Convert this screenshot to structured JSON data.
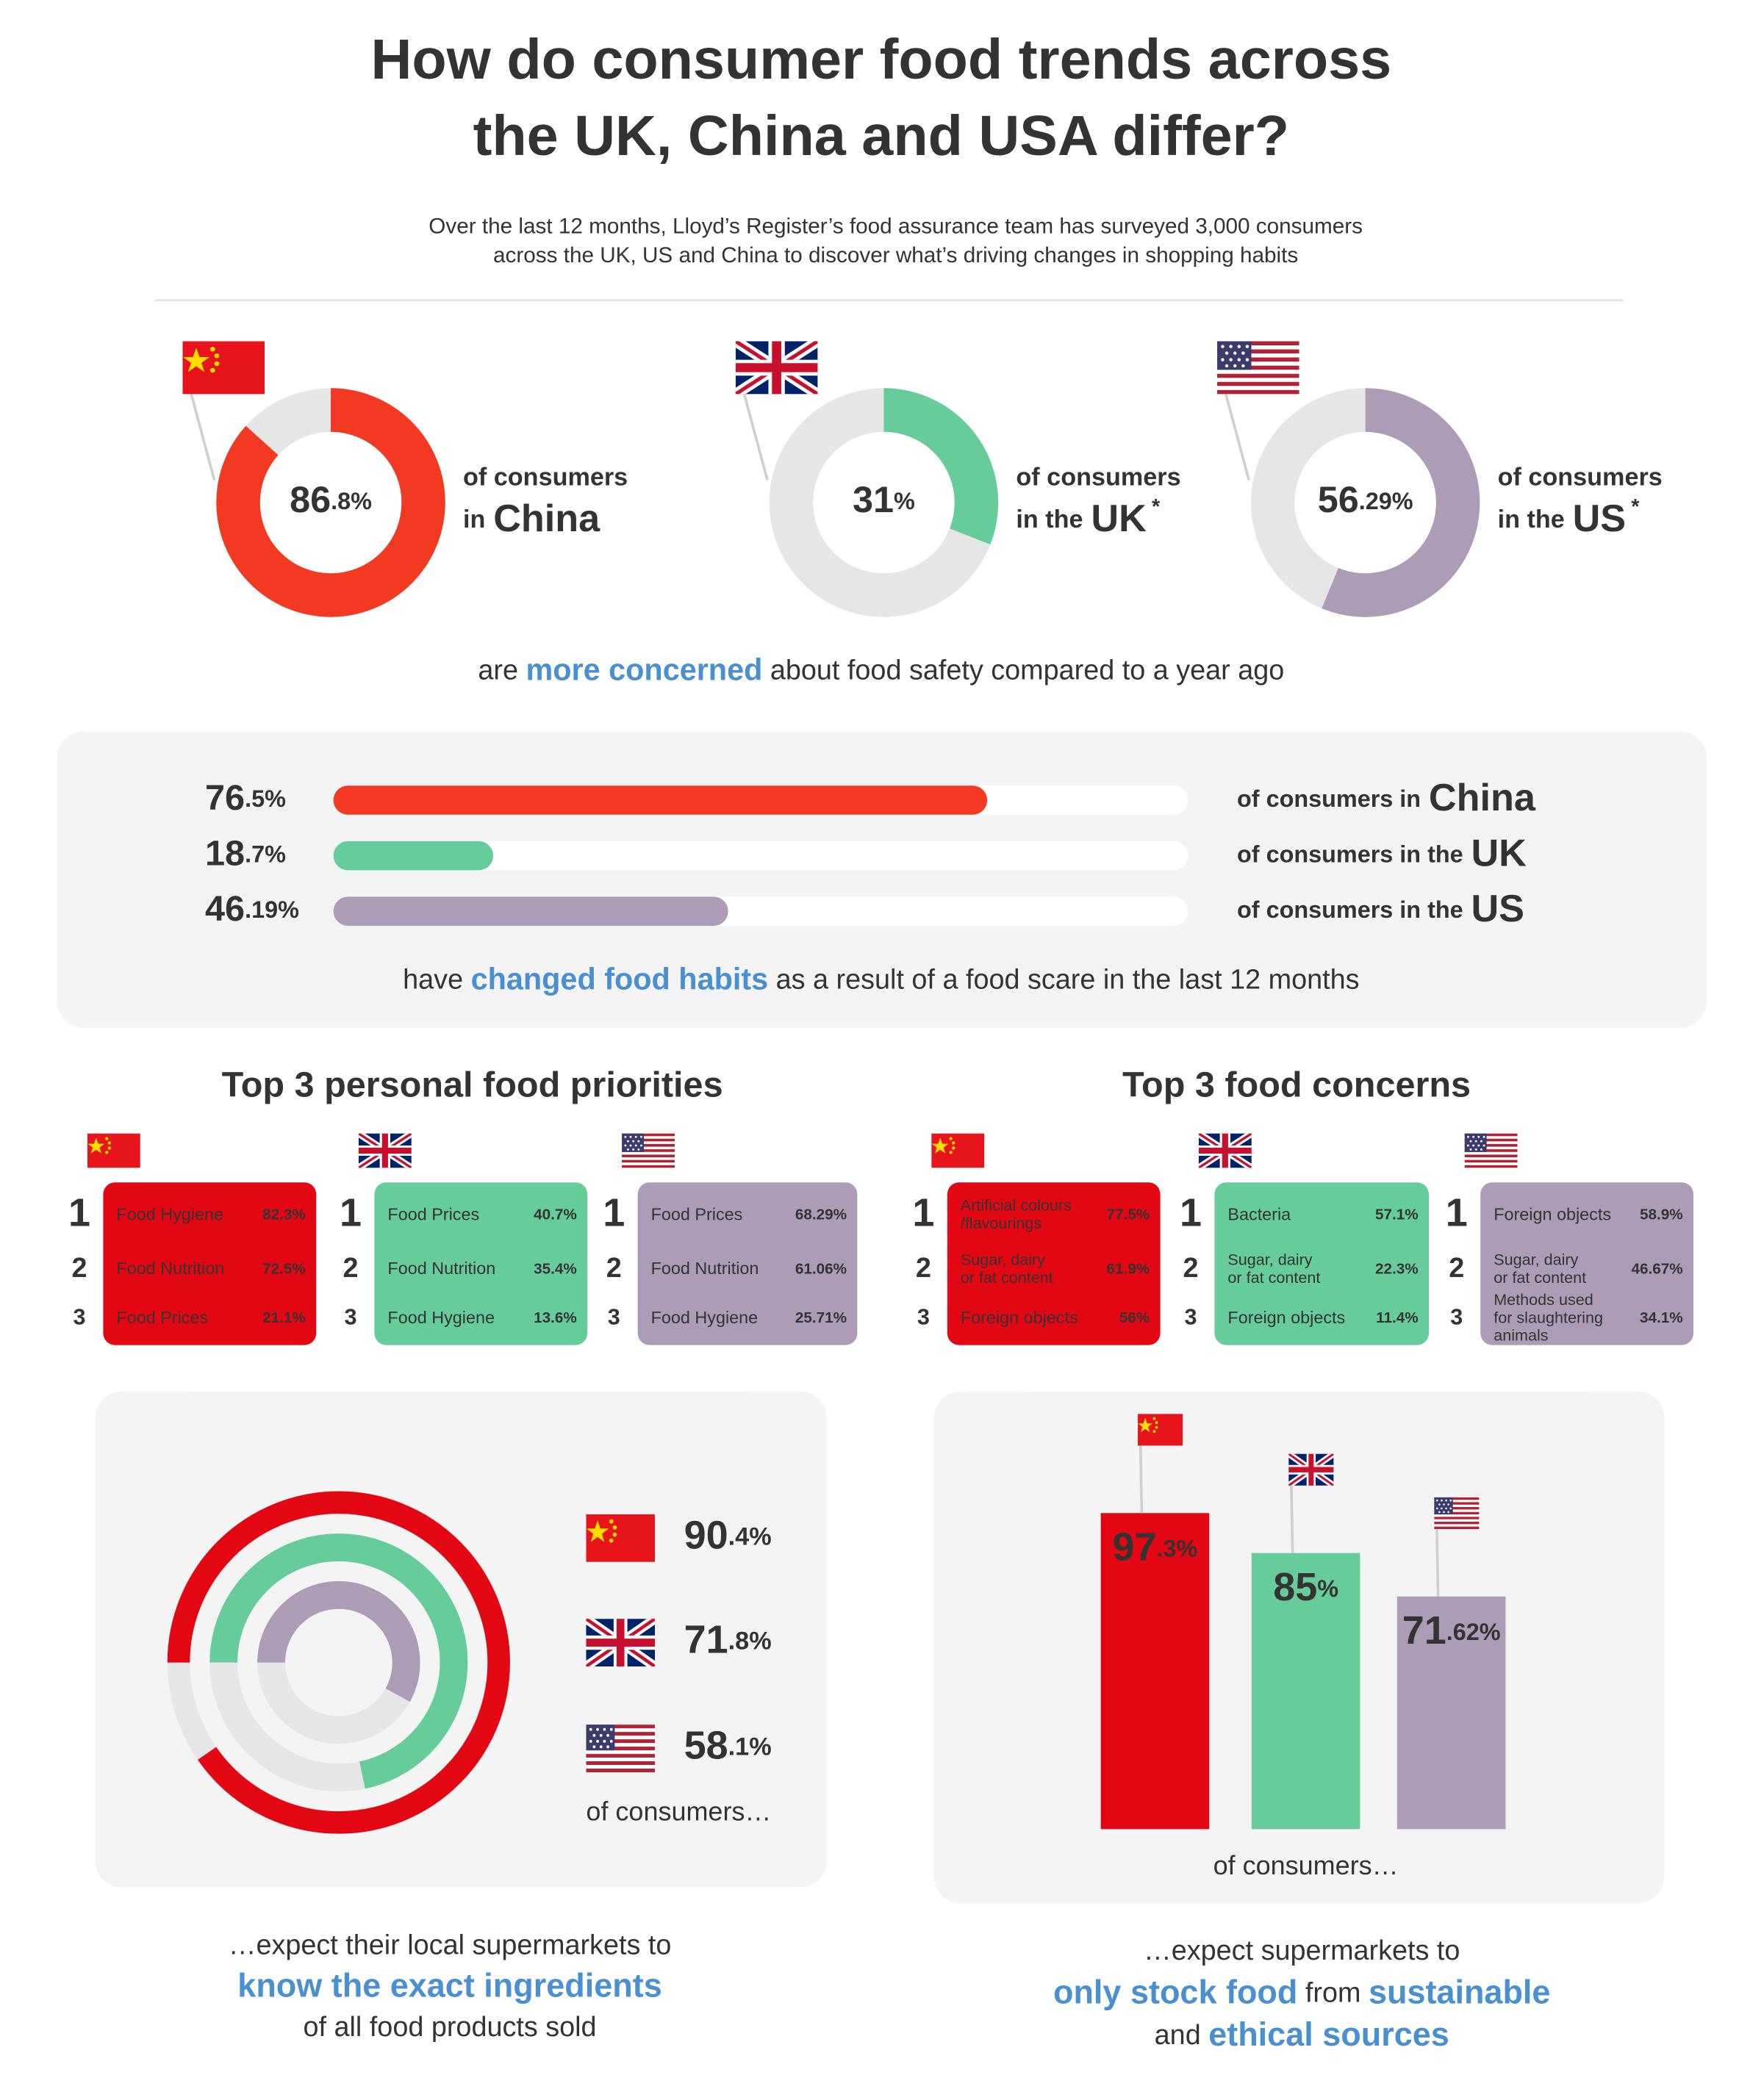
{
  "header": {
    "title_lines": [
      "How do consumer food trends across",
      "the UK, China and USA differ?"
    ],
    "subtitle_lines": [
      "Over the last 12 months, Lloyd’s Register’s food assurance team has surveyed 3,000 consumers",
      "across the UK, US and China to discover what’s driving changes in shopping habits"
    ]
  },
  "chart_data": [
    {
      "type": "donut",
      "track_color": "#e6e6e6",
      "series": [
        {
          "name": "China",
          "flag": "china",
          "color": "#f23a22",
          "value": 86.8,
          "value_label": "86.8%",
          "caption": [
            "of consumers",
            "in"
          ]
        },
        {
          "name": "UK",
          "flag": "uk",
          "color": "#66cc99",
          "value": 31,
          "value_label": "31%",
          "caption": [
            "of consumers",
            "in the"
          ],
          "note": "*"
        },
        {
          "name": "US",
          "flag": "us",
          "color": "#ad9cb5",
          "value": 56.29,
          "value_label": "56.29%",
          "caption": [
            "of consumers",
            "in the"
          ],
          "note": "*"
        }
      ],
      "caption": [
        [
          {
            "text": "are "
          },
          {
            "text": "more concerned",
            "bold": true
          },
          {
            "text": " about food safety compared to a year ago"
          }
        ]
      ]
    },
    {
      "type": "progress",
      "track_color": "#ffffff",
      "xlim": [
        0,
        100
      ],
      "series": [
        {
          "name": "China",
          "color": "#f23a22",
          "value": 76.5,
          "value_label": "76.5%",
          "caption": "of consumers in"
        },
        {
          "name": "UK",
          "color": "#66cc99",
          "value": 18.7,
          "value_label": "18.7%",
          "caption": "of consumers in the"
        },
        {
          "name": "US",
          "color": "#ad9cb5",
          "value": 46.19,
          "value_label": "46.19%",
          "caption": "of consumers in the"
        }
      ],
      "caption": [
        [
          {
            "text": "have "
          },
          {
            "text": "changed food habits",
            "bold": true
          },
          {
            "text": " as a result of a food scare in the last 12 months"
          }
        ]
      ]
    },
    {
      "type": "rings",
      "track_color": "#e6e6e6",
      "series": [
        {
          "flag": "china",
          "color": "#e30613",
          "value": 90.4,
          "value_label": "90.4%"
        },
        {
          "flag": "uk",
          "color": "#66cc99",
          "value": 71.8,
          "value_label": "71.8%"
        },
        {
          "flag": "us",
          "color": "#ad9cb5",
          "value": 58.1,
          "value_label": "58.1%"
        }
      ],
      "footer": "of consumers…",
      "caption": [
        [
          {
            "text": "…expect their local supermarkets to"
          }
        ],
        [
          {
            "text": "know the exact ingredients",
            "bold": true
          }
        ],
        [
          {
            "text": "of all food products sold"
          }
        ]
      ]
    },
    {
      "type": "bar",
      "ylim": [
        0,
        100
      ],
      "series": [
        {
          "flag": "china",
          "color": "#e30613",
          "value": 97.3,
          "value_label": "97.3%"
        },
        {
          "flag": "uk",
          "color": "#66cc99",
          "value": 85,
          "value_label": "85%"
        },
        {
          "flag": "us",
          "color": "#ad9cb5",
          "value": 71.62,
          "value_label": "71.62%"
        }
      ],
      "footer": "of consumers…",
      "caption": [
        [
          {
            "text": "…expect supermarkets to"
          }
        ],
        [
          {
            "text": "only stock food",
            "bold": true
          },
          {
            "text": " from "
          },
          {
            "text": "sustainable",
            "bold": true
          }
        ],
        [
          {
            "text": "and "
          },
          {
            "text": "ethical sources",
            "bold": true
          }
        ]
      ]
    }
  ],
  "priorities": {
    "title": "Top 3 personal food priorities",
    "ranks": [
      "1",
      "2",
      "3"
    ],
    "columns": [
      {
        "flag": "china",
        "color": "#e30613",
        "items": [
          {
            "name": [
              "Food Hygiene"
            ],
            "value": "82.3%"
          },
          {
            "name": [
              "Food Nutrition"
            ],
            "value": "72.5%"
          },
          {
            "name": [
              "Food Prices"
            ],
            "value": "21.1%"
          }
        ]
      },
      {
        "flag": "uk",
        "color": "#66cc99",
        "items": [
          {
            "name": [
              "Food Prices"
            ],
            "value": "40.7%"
          },
          {
            "name": [
              "Food Nutrition"
            ],
            "value": "35.4%"
          },
          {
            "name": [
              "Food Hygiene"
            ],
            "value": "13.6%"
          }
        ]
      },
      {
        "flag": "us",
        "color": "#ad9cb5",
        "items": [
          {
            "name": [
              "Food Prices"
            ],
            "value": "68.29%"
          },
          {
            "name": [
              "Food Nutrition"
            ],
            "value": "61.06%"
          },
          {
            "name": [
              "Food Hygiene"
            ],
            "value": "25.71%"
          }
        ]
      }
    ]
  },
  "concerns": {
    "title": "Top 3 food concerns",
    "ranks": [
      "1",
      "2",
      "3"
    ],
    "columns": [
      {
        "flag": "china",
        "color": "#e30613",
        "items": [
          {
            "name": [
              "Artificial colours",
              "/flavourings"
            ],
            "value": "77.5%"
          },
          {
            "name": [
              "Sugar, dairy",
              "or fat content"
            ],
            "value": "61.9%"
          },
          {
            "name": [
              "Foreign objects"
            ],
            "value": "56%"
          }
        ]
      },
      {
        "flag": "uk",
        "color": "#66cc99",
        "items": [
          {
            "name": [
              "Bacteria"
            ],
            "value": "57.1%"
          },
          {
            "name": [
              "Sugar, dairy",
              "or fat content"
            ],
            "value": "22.3%"
          },
          {
            "name": [
              "Foreign objects"
            ],
            "value": "11.4%"
          }
        ]
      },
      {
        "flag": "us",
        "color": "#ad9cb5",
        "items": [
          {
            "name": [
              "Foreign objects"
            ],
            "value": "58.9%"
          },
          {
            "name": [
              "Sugar, dairy",
              "or fat content"
            ],
            "value": "46.67%"
          },
          {
            "name": [
              "Methods used",
              "for slaughtering",
              "animals"
            ],
            "value": "34.1%"
          }
        ]
      }
    ]
  }
}
